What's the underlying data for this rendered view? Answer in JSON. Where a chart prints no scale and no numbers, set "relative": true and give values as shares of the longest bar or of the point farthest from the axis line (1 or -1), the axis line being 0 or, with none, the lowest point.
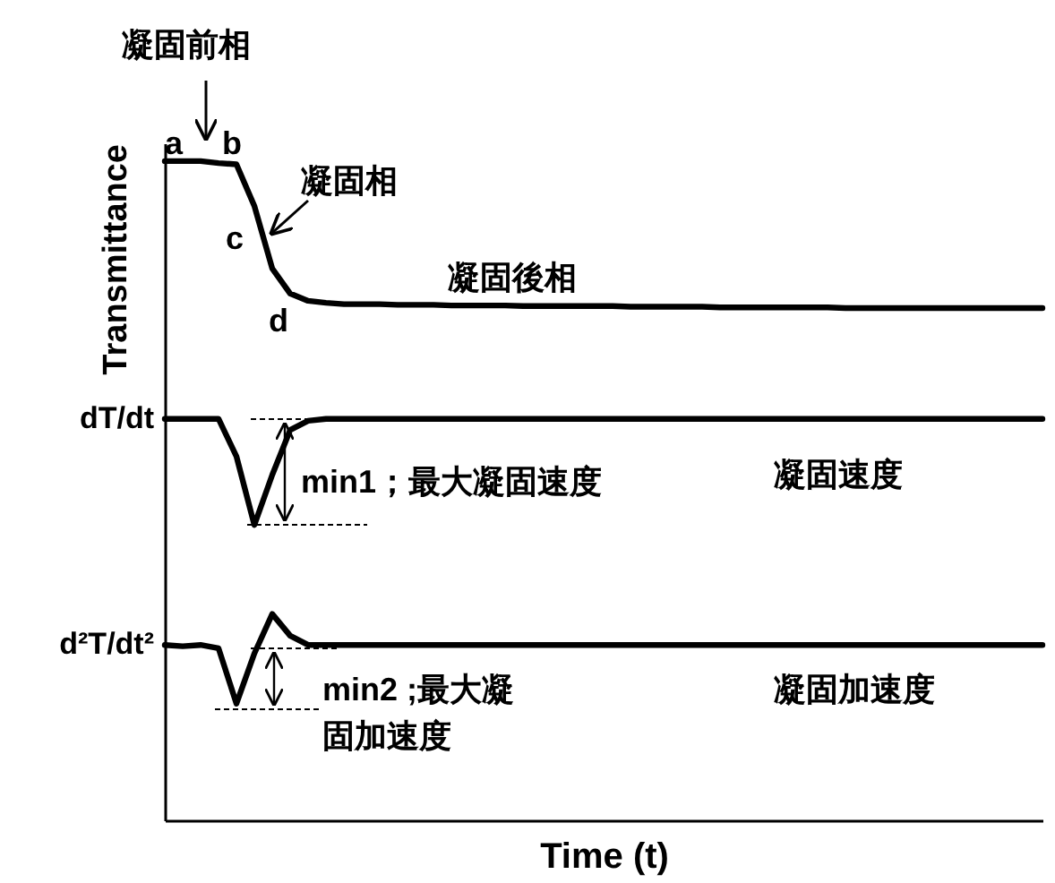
{
  "chart_data": {
    "type": "line",
    "relative": true,
    "xlabel": "Time (t)",
    "ylabel": "Transmittance",
    "legend": false,
    "categories": [
      null,
      null,
      null,
      null,
      null,
      null,
      null,
      null,
      null,
      null,
      null,
      null,
      null,
      null,
      null,
      null,
      null,
      null,
      null,
      null,
      null,
      null,
      null,
      null,
      null,
      null,
      null,
      null,
      null,
      null,
      null,
      null,
      null,
      null,
      null,
      null,
      null,
      null,
      null,
      null,
      null,
      null,
      null,
      null,
      null,
      null,
      null,
      null,
      null,
      null
    ],
    "series": [
      {
        "color": "#000000",
        "values": [
          1.0,
          1.0,
          1.0,
          0.997,
          0.995,
          0.932,
          0.837,
          0.799,
          0.788,
          0.785,
          0.783,
          0.783,
          0.783,
          0.782,
          0.782,
          0.782,
          0.781,
          0.781,
          0.781,
          0.781,
          0.78,
          0.78,
          0.78,
          0.78,
          0.78,
          0.78,
          0.779,
          0.779,
          0.779,
          0.779,
          0.779,
          0.778,
          0.778,
          0.778,
          0.778,
          0.778,
          0.778,
          0.778,
          0.777,
          0.777,
          0.777,
          0.777,
          0.777,
          0.777,
          0.777,
          0.777,
          0.777,
          0.777,
          0.777,
          0.777
        ]
      },
      {
        "name": "dT/dt",
        "color": "#000000",
        "values": [
          0.609,
          0.609,
          0.609,
          0.609,
          0.552,
          0.448,
          0.524,
          0.592,
          0.606,
          0.609,
          0.609,
          0.609,
          0.609,
          0.609,
          0.609,
          0.609,
          0.609,
          0.609,
          0.609,
          0.609,
          0.609,
          0.609,
          0.609,
          0.609,
          0.609,
          0.609,
          0.609,
          0.609,
          0.609,
          0.609,
          0.609,
          0.609,
          0.609,
          0.609,
          0.609,
          0.609,
          0.609,
          0.609,
          0.609,
          0.609,
          0.609,
          0.609,
          0.609,
          0.609,
          0.609,
          0.609,
          0.609,
          0.609,
          0.609,
          0.609
        ]
      },
      {
        "name": "d²T/dt²",
        "color": "#000000",
        "values": [
          0.266,
          0.264,
          0.266,
          0.261,
          0.177,
          0.253,
          0.313,
          0.28,
          0.266,
          0.266,
          0.266,
          0.266,
          0.266,
          0.266,
          0.266,
          0.266,
          0.266,
          0.266,
          0.266,
          0.266,
          0.266,
          0.266,
          0.266,
          0.266,
          0.266,
          0.266,
          0.266,
          0.266,
          0.266,
          0.266,
          0.266,
          0.266,
          0.266,
          0.266,
          0.266,
          0.266,
          0.266,
          0.266,
          0.266,
          0.266,
          0.266,
          0.266,
          0.266,
          0.266,
          0.266,
          0.266,
          0.266,
          0.266,
          0.266,
          0.266
        ]
      }
    ],
    "annotations": [
      "凝固前相",
      "a",
      "b",
      "凝固相",
      "c",
      "d",
      "凝固後相",
      "min1；最大凝固速度",
      "凝固速度",
      "min2 ;最大凝固加速度",
      "凝固加速度"
    ]
  }
}
